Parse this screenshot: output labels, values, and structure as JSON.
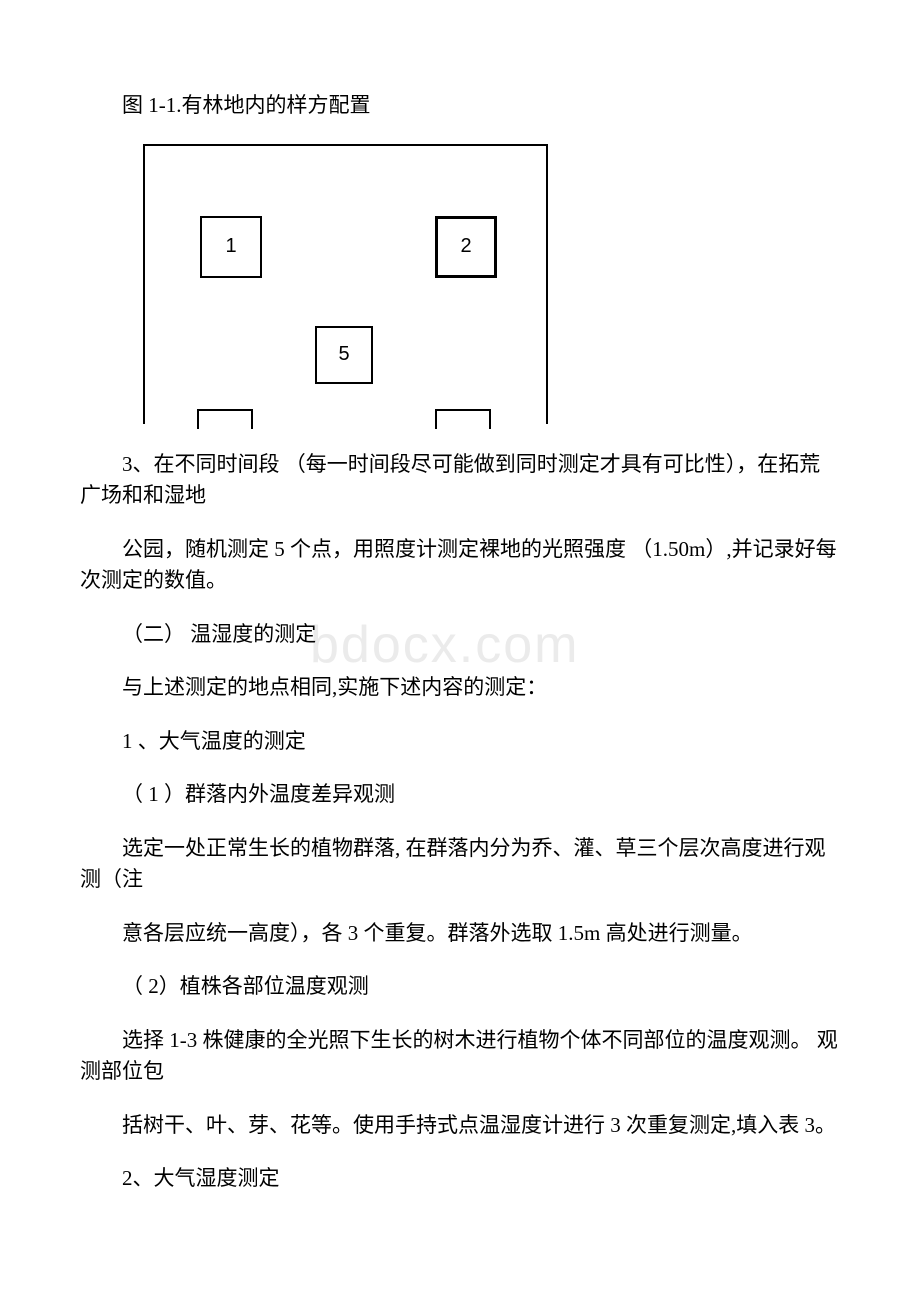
{
  "watermark": "bdocx.com",
  "figure_caption": "图 1-1.有林地内的样方配置",
  "diagram": {
    "quadrats": {
      "q1": "1",
      "q2": "2",
      "q5": "5"
    },
    "border_color": "#000000",
    "background_color": "#ffffff",
    "label_fontsize": 20
  },
  "paragraphs": {
    "p1": "3、在不同时间段 （每一时间段尽可能做到同时测定才具有可比性），在拓荒广场和和湿地",
    "p2": "公园，随机测定 5 个点，用照度计测定裸地的光照强度 （1.50m）,并记录好每次测定的数值。",
    "p3": "（二） 温湿度的测定",
    "p4": "与上述测定的地点相同,实施下述内容的测定：",
    "p5": "1 、大气温度的测定",
    "p6": "（ 1 ）群落内外温度差异观测",
    "p7": "选定一处正常生长的植物群落, 在群落内分为乔、灌、草三个层次高度进行观测（注",
    "p8": "意各层应统一高度），各 3 个重复。群落外选取 1.5m 高处进行测量。",
    "p9": "（ 2）植株各部位温度观测",
    "p10": "选择 1-3 株健康的全光照下生长的树木进行植物个体不同部位的温度观测。 观测部位包",
    "p11": "括树干、叶、芽、花等。使用手持式点温湿度计进行 3 次重复测定,填入表 3。",
    "p12": "2、大气湿度测定"
  },
  "text_color": "#000000",
  "background_color": "#ffffff",
  "body_fontsize": 21
}
